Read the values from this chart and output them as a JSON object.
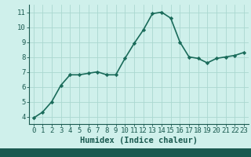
{
  "x": [
    0,
    1,
    2,
    3,
    4,
    5,
    6,
    7,
    8,
    9,
    10,
    11,
    12,
    13,
    14,
    15,
    16,
    17,
    18,
    19,
    20,
    21,
    22,
    23
  ],
  "y": [
    3.9,
    4.3,
    5.0,
    6.1,
    6.8,
    6.8,
    6.9,
    7.0,
    6.8,
    6.8,
    7.9,
    8.9,
    9.8,
    10.9,
    11.0,
    10.6,
    9.0,
    8.0,
    7.9,
    7.6,
    7.9,
    8.0,
    8.1,
    8.3
  ],
  "line_color": "#1a6b5a",
  "marker": "D",
  "marker_size": 2.2,
  "bg_color": "#cff0eb",
  "grid_color": "#aad8d0",
  "axis_color": "#1a5a50",
  "tick_label_color": "#1a5a50",
  "xlabel": "Humidex (Indice chaleur)",
  "xlim": [
    -0.5,
    23.5
  ],
  "ylim": [
    3.5,
    11.5
  ],
  "yticks": [
    4,
    5,
    6,
    7,
    8,
    9,
    10,
    11
  ],
  "xticks": [
    0,
    1,
    2,
    3,
    4,
    5,
    6,
    7,
    8,
    9,
    10,
    11,
    12,
    13,
    14,
    15,
    16,
    17,
    18,
    19,
    20,
    21,
    22,
    23
  ],
  "xlabel_fontsize": 7.5,
  "tick_fontsize": 6.5,
  "linewidth": 1.2,
  "bottom_bar_color": "#1a5a50"
}
